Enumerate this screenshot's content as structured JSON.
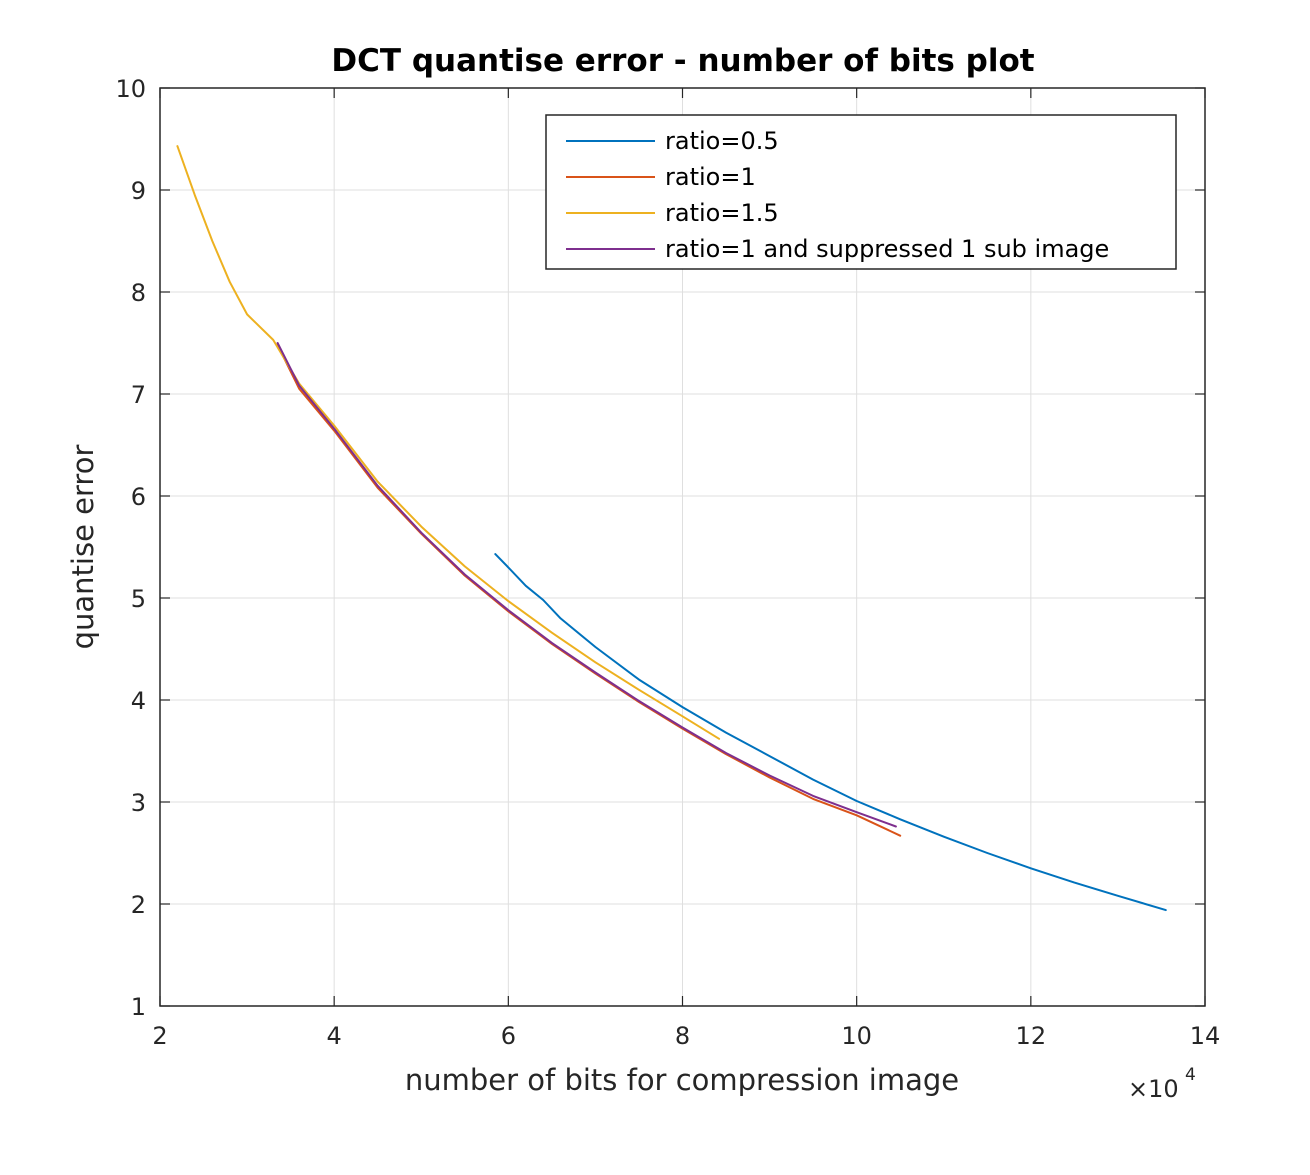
{
  "chart_data": {
    "type": "line",
    "title": "DCT quantise error - number of bits plot",
    "xlabel": "number of bits for compression image",
    "ylabel": "quantise error",
    "x_exponent_label": {
      "prefix": "×10",
      "power": "4"
    },
    "xlim": [
      2,
      14
    ],
    "ylim": [
      1,
      10
    ],
    "xticks": [
      2,
      4,
      6,
      8,
      10,
      12,
      14
    ],
    "yticks": [
      1,
      2,
      3,
      4,
      5,
      6,
      7,
      8,
      9,
      10
    ],
    "grid": true,
    "legend_position": "top-right",
    "series": [
      {
        "name": "ratio=0.5",
        "color": "#0072BD",
        "points": [
          [
            5.85,
            5.43
          ],
          [
            6.0,
            5.3
          ],
          [
            6.2,
            5.12
          ],
          [
            6.4,
            4.98
          ],
          [
            6.6,
            4.8
          ],
          [
            7.0,
            4.52
          ],
          [
            7.5,
            4.2
          ],
          [
            8.0,
            3.93
          ],
          [
            8.5,
            3.68
          ],
          [
            9.0,
            3.45
          ],
          [
            9.5,
            3.22
          ],
          [
            10.0,
            3.01
          ],
          [
            10.5,
            2.83
          ],
          [
            11.0,
            2.66
          ],
          [
            11.5,
            2.5
          ],
          [
            12.0,
            2.35
          ],
          [
            12.5,
            2.21
          ],
          [
            13.0,
            2.08
          ],
          [
            13.55,
            1.94
          ]
        ]
      },
      {
        "name": "ratio=1",
        "color": "#D95319",
        "points": [
          [
            3.35,
            7.48
          ],
          [
            3.6,
            7.05
          ],
          [
            4.0,
            6.64
          ],
          [
            4.5,
            6.08
          ],
          [
            5.0,
            5.63
          ],
          [
            5.5,
            5.22
          ],
          [
            6.0,
            4.87
          ],
          [
            6.5,
            4.55
          ],
          [
            7.0,
            4.26
          ],
          [
            7.5,
            3.98
          ],
          [
            8.0,
            3.72
          ],
          [
            8.5,
            3.47
          ],
          [
            9.0,
            3.24
          ],
          [
            9.5,
            3.03
          ],
          [
            10.0,
            2.87
          ],
          [
            10.5,
            2.67
          ]
        ]
      },
      {
        "name": "ratio=1.5",
        "color": "#EDB120",
        "points": [
          [
            2.2,
            9.43
          ],
          [
            2.4,
            8.95
          ],
          [
            2.6,
            8.5
          ],
          [
            2.8,
            8.1
          ],
          [
            3.0,
            7.78
          ],
          [
            3.3,
            7.53
          ],
          [
            3.6,
            7.1
          ],
          [
            4.0,
            6.69
          ],
          [
            4.5,
            6.14
          ],
          [
            5.0,
            5.7
          ],
          [
            5.5,
            5.31
          ],
          [
            6.0,
            4.97
          ],
          [
            6.5,
            4.66
          ],
          [
            7.0,
            4.37
          ],
          [
            7.5,
            4.1
          ],
          [
            8.0,
            3.84
          ],
          [
            8.42,
            3.62
          ]
        ]
      },
      {
        "name": "ratio=1 and suppressed 1 sub image",
        "color": "#7E2F8E",
        "points": [
          [
            3.35,
            7.5
          ],
          [
            3.6,
            7.08
          ],
          [
            4.0,
            6.66
          ],
          [
            4.5,
            6.1
          ],
          [
            5.0,
            5.64
          ],
          [
            5.5,
            5.23
          ],
          [
            6.0,
            4.88
          ],
          [
            6.5,
            4.56
          ],
          [
            7.0,
            4.27
          ],
          [
            7.5,
            3.99
          ],
          [
            8.0,
            3.73
          ],
          [
            8.5,
            3.48
          ],
          [
            9.0,
            3.26
          ],
          [
            9.5,
            3.06
          ],
          [
            10.0,
            2.9
          ],
          [
            10.45,
            2.76
          ]
        ]
      }
    ]
  }
}
